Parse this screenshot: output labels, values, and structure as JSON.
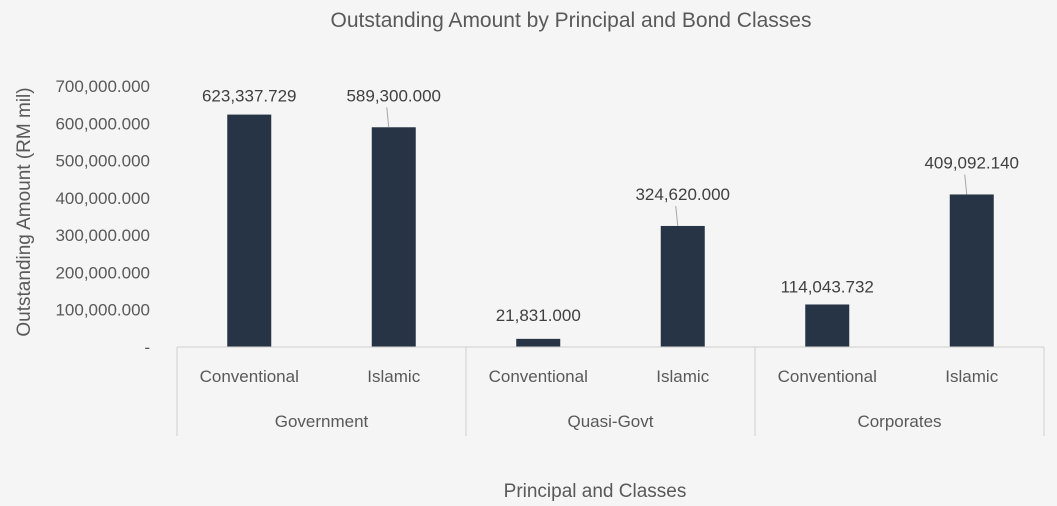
{
  "chart_data": {
    "type": "bar",
    "title": "Outstanding Amount by Principal and Bond Classes",
    "xlabel": "Principal and Classes",
    "ylabel": "Outstanding Amount (RM mil)",
    "ylim": [
      0,
      700000
    ],
    "yticks": [
      {
        "value": 0,
        "label": "-"
      },
      {
        "value": 100000,
        "label": "100,000.000"
      },
      {
        "value": 200000,
        "label": "200,000.000"
      },
      {
        "value": 300000,
        "label": "300,000.000"
      },
      {
        "value": 400000,
        "label": "400,000.000"
      },
      {
        "value": 500000,
        "label": "500,000.000"
      },
      {
        "value": 600000,
        "label": "600,000.000"
      },
      {
        "value": 700000,
        "label": "700,000.000"
      }
    ],
    "grid": false,
    "bar_color": "#263445",
    "groups": [
      {
        "name": "Government",
        "bars": [
          {
            "category": "Conventional",
            "value": 623337.729,
            "label": "623,337.729"
          },
          {
            "category": "Islamic",
            "value": 589300.0,
            "label": "589,300.000"
          }
        ]
      },
      {
        "name": "Quasi-Govt",
        "bars": [
          {
            "category": "Conventional",
            "value": 21831.0,
            "label": "21,831.000"
          },
          {
            "category": "Islamic",
            "value": 324620.0,
            "label": "324,620.000"
          }
        ]
      },
      {
        "name": "Corporates",
        "bars": [
          {
            "category": "Conventional",
            "value": 114043.732,
            "label": "114,043.732"
          },
          {
            "category": "Islamic",
            "value": 409092.14,
            "label": "409,092.140"
          }
        ]
      }
    ]
  }
}
